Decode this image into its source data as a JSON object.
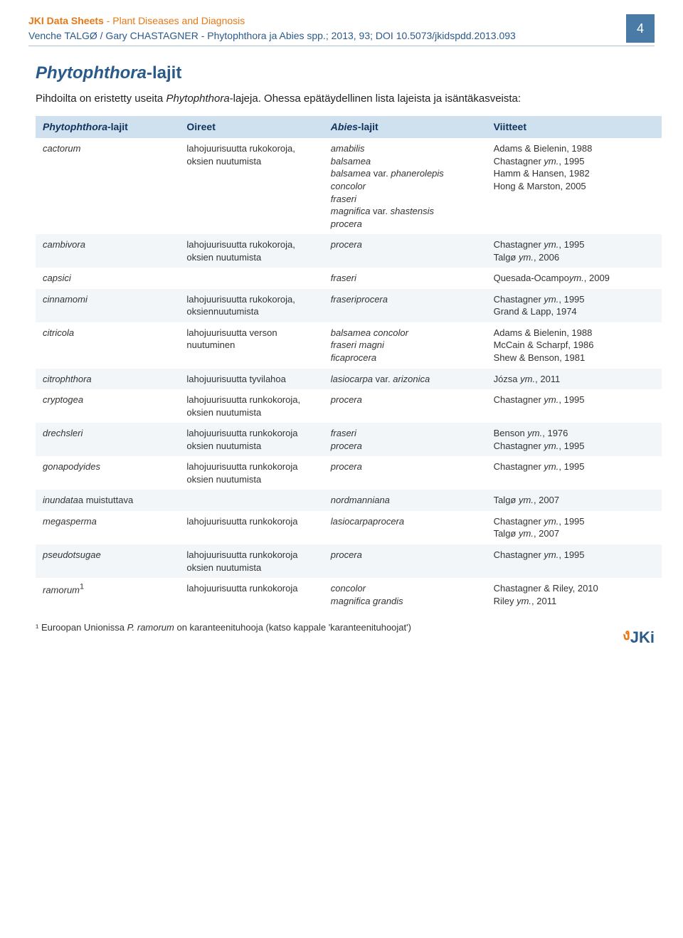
{
  "header": {
    "series_bold": "JKI Data Sheets",
    "series_rest": " - Plant Diseases and Diagnosis",
    "citation": "Venche TALGØ / Gary CHASTAGNER - Phytophthora ja Abies spp.; 2013, 93; DOI 10.5073/jkidspdd.2013.093",
    "page_number": "4"
  },
  "section": {
    "title_italic": "Phytophthora",
    "title_rest": "-lajit",
    "intro_pre": "Pihdoilta on eristetty useita ",
    "intro_em": "Phytophthora",
    "intro_post": "-lajeja. Ohessa epätäydellinen lista lajeista ja isäntäkasveista:"
  },
  "table": {
    "headers": {
      "c1_ital": "Phytophthora",
      "c1_rest": "-lajit",
      "c2": "Oireet",
      "c3_ital": "Abies",
      "c3_rest": "-lajit",
      "c4": "Viitteet"
    },
    "rows": [
      {
        "c1": "cactorum",
        "c2": "lahojuurisuutta rukokoroja, oksien nuutumista",
        "c3_html": "amabilis<br>balsamea<br>balsamea <span class='upright'>var.</span> phanerolepis<br>concolor<br>fraseri<br>magnifica <span class='upright'>var.</span> shastensis<br>procera",
        "c4_html": "Adams &amp; Bielenin, 1988<br>Chastagner <em>ym.</em>, 1995<br>Hamm &amp; Hansen, 1982<br>Hong &amp; Marston, 2005"
      },
      {
        "c1": "cambivora",
        "c2": "lahojuurisuutta rukokoroja, oksien nuutumista",
        "c3_html": "procera",
        "c4_html": "Chastagner <em>ym.</em>, 1995<br>Talgø <em>ym.</em>, 2006"
      },
      {
        "c1": "capsici",
        "c2": "",
        "c3_html": "fraseri",
        "c4_html": "Quesada-Ocampo<em>ym.</em>, 2009"
      },
      {
        "c1": "cinnamomi",
        "c2": "lahojuurisuutta rukokoroja, oksiennuutumista",
        "c3_html": "fraseriprocera",
        "c4_html": "Chastagner <em>ym.</em>, 1995<br>Grand &amp; Lapp, 1974"
      },
      {
        "c1": "citricola",
        "c2": "lahojuurisuutta verson nuutuminen",
        "c3_html": "balsamea concolor<br>fraseri magni<br>ficaprocera",
        "c4_html": "Adams &amp; Bielenin, 1988<br>McCain &amp; Scharpf, 1986<br>Shew &amp; Benson, 1981"
      },
      {
        "c1": "citrophthora",
        "c2": "lahojuurisuutta tyvilahoa",
        "c3_html": "lasiocarpa <span class='upright'>var.</span> arizonica",
        "c4_html": "Józsa <em>ym.</em>, 2011"
      },
      {
        "c1": "cryptogea",
        "c2": "lahojuurisuutta runkokoroja, oksien nuutumista",
        "c3_html": "procera",
        "c4_html": "Chastagner <em>ym.</em>, 1995"
      },
      {
        "c1": "drechsleri",
        "c2": "lahojuurisuutta runkokoroja oksien nuutumista",
        "c3_html": "fraseri<br>procera",
        "c4_html": "Benson <em>ym.</em>, 1976<br>Chastagner <em>ym.</em>, 1995"
      },
      {
        "c1": "gonapodyides",
        "c2": "lahojuurisuutta runkokoroja oksien nuutumista",
        "c3_html": "procera",
        "c4_html": "Chastagner <em>ym.</em>, 1995"
      },
      {
        "c1_html": "inundata<span class='upright'>a muistuttava</span>",
        "c2": "",
        "c3_html": "nordmanniana",
        "c4_html": "Talgø <em>ym.</em>, 2007"
      },
      {
        "c1": "megasperma",
        "c2": "lahojuurisuutta runkokoroja",
        "c3_html": "lasiocarpaprocera",
        "c4_html": "Chastagner <em>ym.</em>, 1995<br>Talgø <em>ym.</em>, 2007"
      },
      {
        "c1": "pseudotsugae",
        "c2": "lahojuurisuutta runkokoroja oksien nuutumista",
        "c3_html": "procera",
        "c4_html": "Chastagner <em>ym.</em>, 1995"
      },
      {
        "c1_html": "ramorum<span class='upright'><sup>1</sup></span>",
        "c2": "lahojuurisuutta runkokoroja",
        "c3_html": "concolor<br>magnifica grandis",
        "c4_html": "Chastagner &amp; Riley, 2010<br>Riley <em>ym.</em>, 2011"
      }
    ]
  },
  "footnote": {
    "pre": "¹ Euroopan Unionissa ",
    "em": "P. ramorum",
    "post": " on karanteenituhooja (katso kappale 'karanteenituhoojat')"
  },
  "logo": {
    "swirl": "ง",
    "text": "JKi"
  },
  "colors": {
    "orange": "#e67817",
    "blue": "#2a5a8a",
    "header_bg": "#cfe0ef",
    "even_row": "#f3f6f9",
    "badge": "#4a7ba6"
  }
}
